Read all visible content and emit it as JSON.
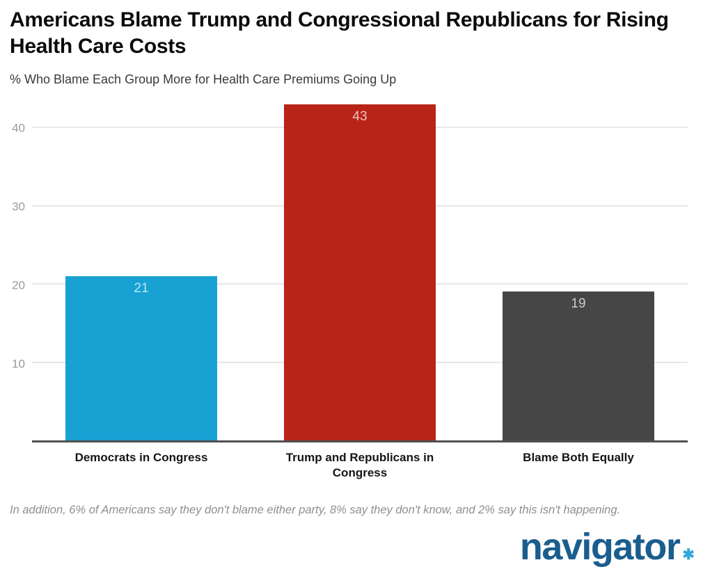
{
  "header": {
    "title": "Americans Blame Trump and Congressional Republicans for Rising Health Care Costs",
    "subtitle": "% Who Blame Each Group More for Health Care Premiums Going Up"
  },
  "chart_data": {
    "type": "bar",
    "title": "Americans Blame Trump and Congressional Republicans for Rising Health Care Costs",
    "subtitle": "% Who Blame Each Group More for Health Care Premiums Going Up",
    "categories": [
      "Democrats in Congress",
      "Trump and Republicans in Congress",
      "Blame Both Equally"
    ],
    "values": [
      21,
      43,
      19
    ],
    "bar_colors": [
      "#17A2D3",
      "#B92418",
      "#464646"
    ],
    "value_label_position": "inside-top",
    "yticks": [
      10,
      20,
      30,
      40
    ],
    "ylim": [
      0,
      43.5
    ],
    "grid": "horizontal-light",
    "legend": "none",
    "xlabel": "",
    "ylabel": ""
  },
  "footnote": "In addition, 6% of Americans say they don't blame either party, 8% say they don't know, and 2% say this isn't happening.",
  "logo": {
    "text": "navigator",
    "star": "✱",
    "text_color": "#1A5E8E",
    "star_color": "#35A7DC"
  }
}
